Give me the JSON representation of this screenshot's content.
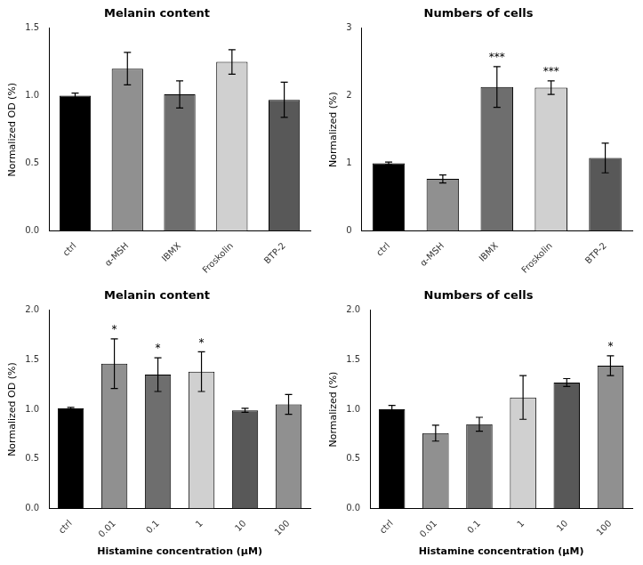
{
  "chart_data": [
    {
      "type": "bar",
      "title": "Melanin content",
      "ylabel": "Normalized OD (%)",
      "categories": [
        "ctrl",
        "α-MSH",
        "IBMX",
        "Froskolin",
        "BTP-2"
      ],
      "values": [
        1.0,
        1.2,
        1.01,
        1.25,
        0.97
      ],
      "errors": [
        0.02,
        0.12,
        0.1,
        0.09,
        0.13
      ],
      "colors": [
        "#000000",
        "#909090",
        "#6e6e6e",
        "#d0d0d0",
        "#585858"
      ],
      "ylim": [
        0,
        1.5
      ],
      "yticks": [
        {
          "value": 0,
          "label": "0.0"
        },
        0.5,
        {
          "value": 1,
          "label": "1.0"
        },
        1.5
      ],
      "grid": false
    },
    {
      "type": "bar",
      "title": "Numbers of cells",
      "ylabel": "Normalized (%)",
      "categories": [
        "ctrl",
        "α-MSH",
        "IBMX",
        "Froskolin",
        "BTP-2"
      ],
      "values": [
        1.0,
        0.77,
        2.13,
        2.12,
        1.08
      ],
      "errors": [
        0.02,
        0.06,
        0.3,
        0.1,
        0.22
      ],
      "colors": [
        "#000000",
        "#909090",
        "#6e6e6e",
        "#d0d0d0",
        "#585858"
      ],
      "annotations": [
        {
          "category": "IBMX",
          "text": "***"
        },
        {
          "category": "Froskolin",
          "text": "***"
        }
      ],
      "ylim": [
        0,
        3
      ],
      "yticks": [
        0,
        1,
        2,
        3
      ],
      "grid": false
    },
    {
      "type": "bar",
      "title": "Melanin content",
      "ylabel": "Normalized OD (%)",
      "xlabel": "Histamine concentration (μM)",
      "categories": [
        "ctrl",
        "0.01",
        "0.1",
        "1",
        "10",
        "100"
      ],
      "values": [
        1.01,
        1.46,
        1.35,
        1.38,
        0.99,
        1.05
      ],
      "errors": [
        0.01,
        0.25,
        0.17,
        0.2,
        0.02,
        0.1
      ],
      "colors": [
        "#000000",
        "#909090",
        "#6e6e6e",
        "#d0d0d0",
        "#585858",
        "#909090"
      ],
      "annotations": [
        {
          "category": "0.01",
          "text": "*"
        },
        {
          "category": "0.1",
          "text": "*"
        },
        {
          "category": "1",
          "text": "*"
        }
      ],
      "ylim": [
        0,
        2.0
      ],
      "yticks": [
        {
          "value": 0,
          "label": "0.0"
        },
        0.5,
        {
          "value": 1,
          "label": "1.0"
        },
        1.5,
        {
          "value": 2,
          "label": "2.0"
        }
      ],
      "grid": false
    },
    {
      "type": "bar",
      "title": "Numbers of cells",
      "ylabel": "Normalized (%)",
      "xlabel": "Histamine concentration (μM)",
      "categories": [
        "ctrl",
        "0.01",
        "0.1",
        "1",
        "10",
        "100"
      ],
      "values": [
        1.0,
        0.76,
        0.85,
        1.12,
        1.27,
        1.44
      ],
      "errors": [
        0.04,
        0.08,
        0.07,
        0.22,
        0.04,
        0.1
      ],
      "colors": [
        "#000000",
        "#909090",
        "#6e6e6e",
        "#d0d0d0",
        "#585858",
        "#909090"
      ],
      "annotations": [
        {
          "category": "100",
          "text": "*"
        }
      ],
      "ylim": [
        0,
        2.0
      ],
      "yticks": [
        {
          "value": 0,
          "label": "0.0"
        },
        0.5,
        {
          "value": 1,
          "label": "1.0"
        },
        1.5,
        {
          "value": 2,
          "label": "2.0"
        }
      ],
      "grid": false
    }
  ]
}
